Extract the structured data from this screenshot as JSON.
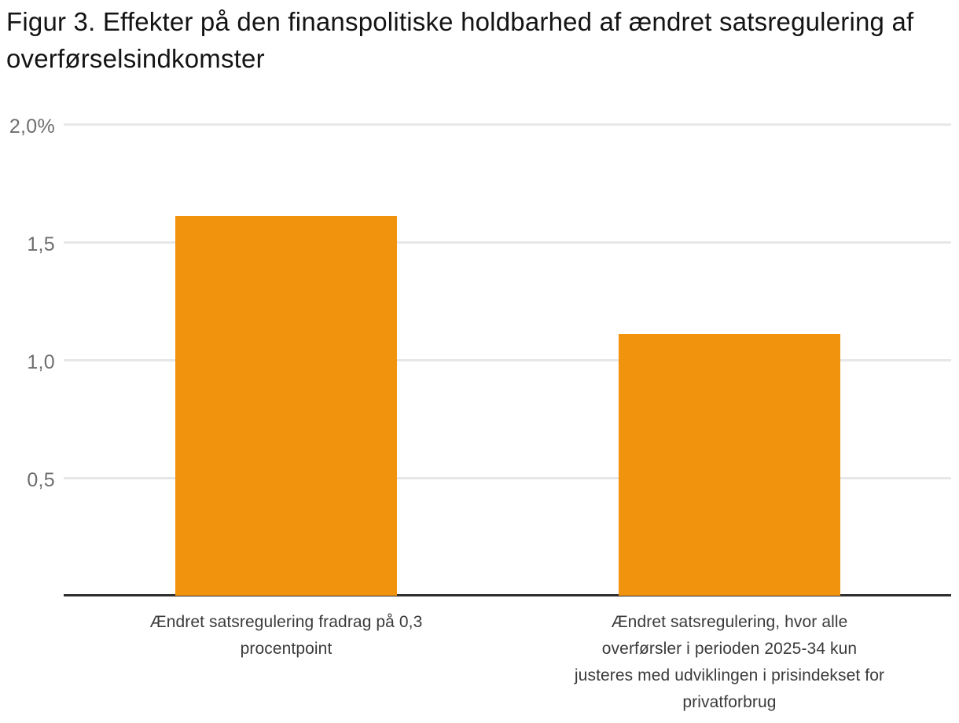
{
  "title": "Figur 3. Effekter på den finanspolitiske holdbarhed af ændret satsregulering af overførselsindkomster",
  "colors": {
    "bar": "#f1930d",
    "axis": "#2e2e2e",
    "gridline": "#e7e7e7",
    "tick_text": "#6e6e6e",
    "label_text": "#3a3a3a",
    "title_text": "#141414",
    "background": "#ffffff"
  },
  "chart_data": {
    "type": "bar",
    "title": "Figur 3. Effekter på den finanspolitiske holdbarhed af ændret satsregulering af overførselsindkomster",
    "categories": [
      "Ændret satsregulering fradrag på 0,3 procentpoint",
      "Ændret satsregulering, hvor alle overførsler i perioden 2025-34 kun justeres med udviklingen i prisindekset for privatforbrug"
    ],
    "categories_lines": [
      [
        "Ændret satsregulering fradrag på 0,3",
        "procentpoint"
      ],
      [
        "Ændret satsregulering, hvor alle",
        "overførsler i perioden 2025-34 kun",
        "justeres med udviklingen i prisindekset for",
        "privatforbrug"
      ]
    ],
    "values": [
      1.61,
      1.11
    ],
    "unit": "%",
    "xlabel": "",
    "ylabel": "",
    "ylim": [
      0,
      2.0
    ],
    "yticks": [
      {
        "label": "2,0%",
        "value": 2.0
      },
      {
        "label": "1,5",
        "value": 1.5
      },
      {
        "label": "1,0",
        "value": 1.0
      },
      {
        "label": "0,5",
        "value": 0.5
      }
    ],
    "grid": true,
    "legend": false,
    "bar_color": "#f1930d"
  }
}
